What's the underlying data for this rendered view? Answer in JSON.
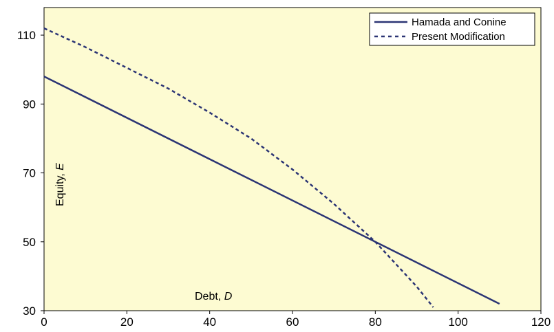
{
  "chart_data": {
    "type": "line",
    "x_ticks": [
      "0",
      "20",
      "40",
      "60",
      "80",
      "100",
      "120"
    ],
    "y_ticks": [
      "30",
      "50",
      "70",
      "90",
      "110"
    ],
    "xlim": [
      0,
      120
    ],
    "ylim": [
      30,
      118
    ],
    "xlabel_prefix": "Debt, ",
    "xlabel_var": "D",
    "ylabel_prefix": "Equity, ",
    "ylabel_var": "E",
    "grid": false,
    "legend_position": "top-right",
    "plot_background": "#fdfbd2",
    "series": [
      {
        "name": "Hamada and Conine",
        "style": "solid",
        "color": "#2b3474",
        "x": [
          0,
          110
        ],
        "y": [
          98,
          32
        ]
      },
      {
        "name": "Present Modification",
        "style": "dashed",
        "color": "#2b3474",
        "x": [
          0,
          10,
          20,
          30,
          40,
          50,
          60,
          70,
          80,
          85,
          90,
          94
        ],
        "y": [
          112,
          106.5,
          100.5,
          94.5,
          87.5,
          80,
          71,
          61,
          50,
          43.5,
          37,
          31
        ]
      }
    ]
  }
}
